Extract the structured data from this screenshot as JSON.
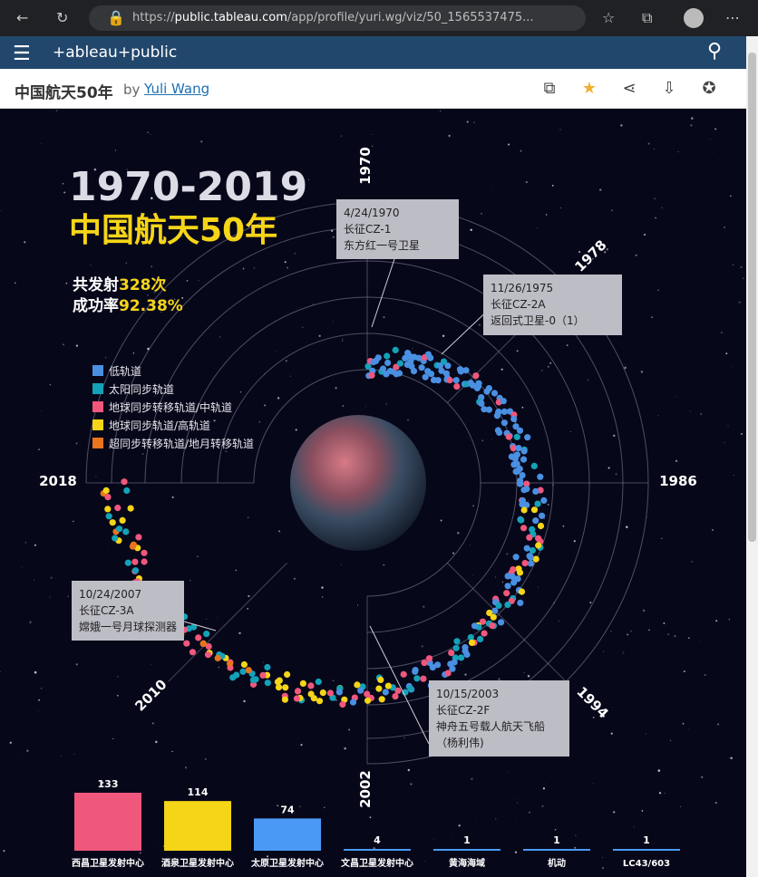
{
  "browser": {
    "url_prefix": "https://",
    "url_host": "public.tableau.com",
    "url_path": "/app/profile/yuri.wg/viz/50_1565537475..."
  },
  "header": {
    "brand": "+ableau+public"
  },
  "viz_bar": {
    "title": "中国航天50年",
    "by": "by",
    "author": "Yuli Wang"
  },
  "viz": {
    "title_years": "1970-2019",
    "title_cn": "中国航天50年",
    "stat1_label": "共发射",
    "stat1_value": "328次",
    "stat2_label": "成功率",
    "stat2_value": "92.38%",
    "year_labels": [
      "1970",
      "1978",
      "1986",
      "1994",
      "2002",
      "2010",
      "2018"
    ],
    "colors": {
      "low": "#4a90e2",
      "sso": "#14a2b8",
      "gto": "#f0577d",
      "geo": "#f5d517",
      "super": "#e8741e"
    }
  },
  "legend": [
    {
      "label": "低轨道",
      "color": "#4a90e2"
    },
    {
      "label": "太阳同步轨道",
      "color": "#14a2b8"
    },
    {
      "label": "地球同步转移轨道/中轨道",
      "color": "#f0577d"
    },
    {
      "label": "地球同步轨道/高轨道",
      "color": "#f5d517"
    },
    {
      "label": "超同步转移轨道/地月转移轨道",
      "color": "#e8741e"
    }
  ],
  "tooltips": [
    {
      "date": "4/24/1970",
      "rocket": "长征CZ-1",
      "payload": "东方红一号卫星"
    },
    {
      "date": "11/26/1975",
      "rocket": "长征CZ-2A",
      "payload": "返回式卫星-0（1）"
    },
    {
      "date": "10/24/2007",
      "rocket": "长征CZ-3A",
      "payload": "嫦娥一号月球探测器"
    },
    {
      "date": "10/15/2003",
      "rocket": "长征CZ-2F",
      "payload": "神舟五号载人航天飞船（杨利伟)"
    }
  ],
  "chart_data": {
    "type": "bar",
    "categories": [
      "西昌卫星发射中心",
      "酒泉卫星发射中心",
      "太原卫星发射中心",
      "文昌卫星发射中心",
      "黄海海域",
      "机动",
      "LC43/603"
    ],
    "values": [
      133,
      114,
      74,
      4,
      1,
      1,
      1
    ],
    "colors": [
      "#f0577d",
      "#f5d517",
      "#4a9af5",
      "#4a9af5",
      "#4a9af5",
      "#4a9af5",
      "#4a9af5"
    ]
  }
}
